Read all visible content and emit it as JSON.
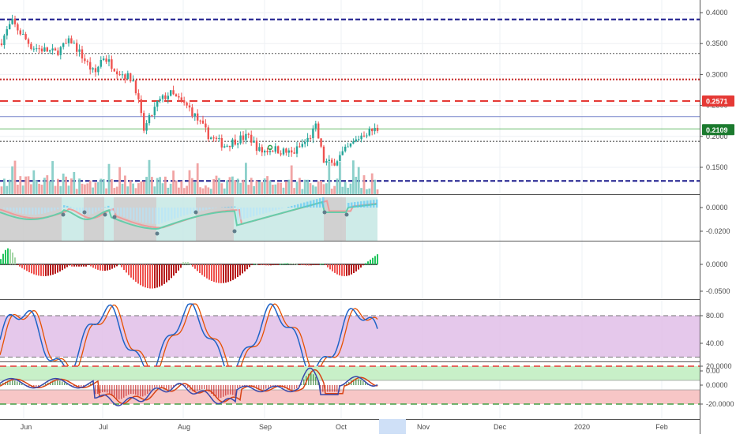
{
  "price_axis": {
    "ticks": [
      "0.4000",
      "0.3500",
      "0.3000",
      "0.2500",
      "0.2000",
      "0.1500"
    ],
    "tick_values": [
      0.4,
      0.35,
      0.3,
      0.25,
      0.2,
      0.15
    ],
    "current_price_tag": {
      "label": "0.2109",
      "value": 0.2109,
      "color": "#1b7a2e"
    },
    "resistance_tag": {
      "label": "0.2571",
      "value": 0.2571,
      "color": "#e53935"
    }
  },
  "horizontal_levels": [
    {
      "value": 0.389,
      "style": "dashed",
      "color": "#1a1a8c"
    },
    {
      "value": 0.334,
      "style": "dotted",
      "color": "#555555"
    },
    {
      "value": 0.292,
      "style": "dotted",
      "color": "#c62828"
    },
    {
      "value": 0.2571,
      "style": "dashed",
      "color": "#e53935"
    },
    {
      "value": 0.232,
      "style": "solid",
      "color": "#7986cb"
    },
    {
      "value": 0.212,
      "style": "solid",
      "color": "#66bb6a"
    },
    {
      "value": 0.192,
      "style": "dotted",
      "color": "#333333"
    },
    {
      "value": 0.128,
      "style": "dashed",
      "color": "#1a1a8c"
    }
  ],
  "oscillator1_axis": {
    "ticks": [
      "0.0000",
      "-0.0200"
    ],
    "tick_values": [
      0.0,
      -0.02
    ]
  },
  "histogram_axis": {
    "ticks": [
      "0.0000",
      "-0.0500"
    ],
    "tick_values": [
      0.0,
      -0.05
    ]
  },
  "stoch_axis": {
    "ticks": [
      "80.00",
      "40.00",
      "0.00"
    ],
    "tick_values": [
      80,
      40,
      0
    ]
  },
  "bottom_axis": {
    "ticks": [
      "20.0000",
      "0.0000",
      "-20.0000"
    ],
    "tick_values": [
      20,
      0,
      -20
    ]
  },
  "time_axis": {
    "labels": [
      "Jun",
      "Jul",
      "Aug",
      "Sep",
      "Oct",
      "Nov",
      "Dec",
      "2020",
      "Feb"
    ]
  },
  "colors": {
    "up": "#26a69a",
    "down": "#ef5350",
    "vol_up": "#80cbc4",
    "vol_down": "#ef9a9a",
    "stoch_band": "#e1bee7",
    "bottom_green_zone": "#c8f0c8",
    "bottom_red_zone": "#f7c6c6"
  }
}
